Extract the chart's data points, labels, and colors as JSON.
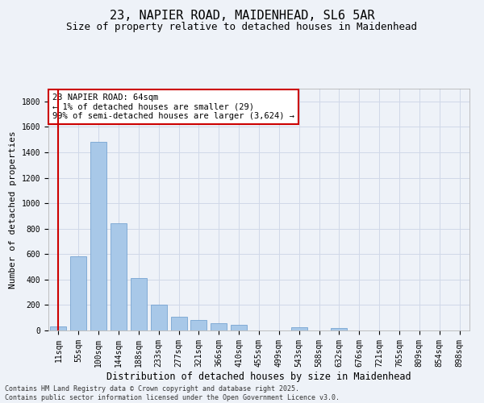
{
  "title1": "23, NAPIER ROAD, MAIDENHEAD, SL6 5AR",
  "title2": "Size of property relative to detached houses in Maidenhead",
  "xlabel": "Distribution of detached houses by size in Maidenhead",
  "ylabel": "Number of detached properties",
  "categories": [
    "11sqm",
    "55sqm",
    "100sqm",
    "144sqm",
    "188sqm",
    "233sqm",
    "277sqm",
    "321sqm",
    "366sqm",
    "410sqm",
    "455sqm",
    "499sqm",
    "543sqm",
    "588sqm",
    "632sqm",
    "676sqm",
    "721sqm",
    "765sqm",
    "809sqm",
    "854sqm",
    "898sqm"
  ],
  "values": [
    29,
    580,
    1480,
    840,
    410,
    200,
    110,
    80,
    60,
    45,
    0,
    0,
    25,
    0,
    20,
    0,
    0,
    0,
    0,
    0,
    0
  ],
  "bar_color": "#a8c8e8",
  "bar_edge_color": "#6699cc",
  "highlight_line_color": "#cc0000",
  "annotation_text": "23 NAPIER ROAD: 64sqm\n← 1% of detached houses are smaller (29)\n99% of semi-detached houses are larger (3,624) →",
  "annotation_box_color": "#ffffff",
  "annotation_box_edge_color": "#cc0000",
  "ylim": [
    0,
    1900
  ],
  "yticks": [
    0,
    200,
    400,
    600,
    800,
    1000,
    1200,
    1400,
    1600,
    1800
  ],
  "grid_color": "#d0d8e8",
  "background_color": "#eef2f8",
  "footer_text": "Contains HM Land Registry data © Crown copyright and database right 2025.\nContains public sector information licensed under the Open Government Licence v3.0.",
  "title1_fontsize": 11,
  "title2_fontsize": 9,
  "xlabel_fontsize": 8.5,
  "ylabel_fontsize": 8,
  "tick_fontsize": 7,
  "annotation_fontsize": 7.5,
  "footer_fontsize": 6
}
